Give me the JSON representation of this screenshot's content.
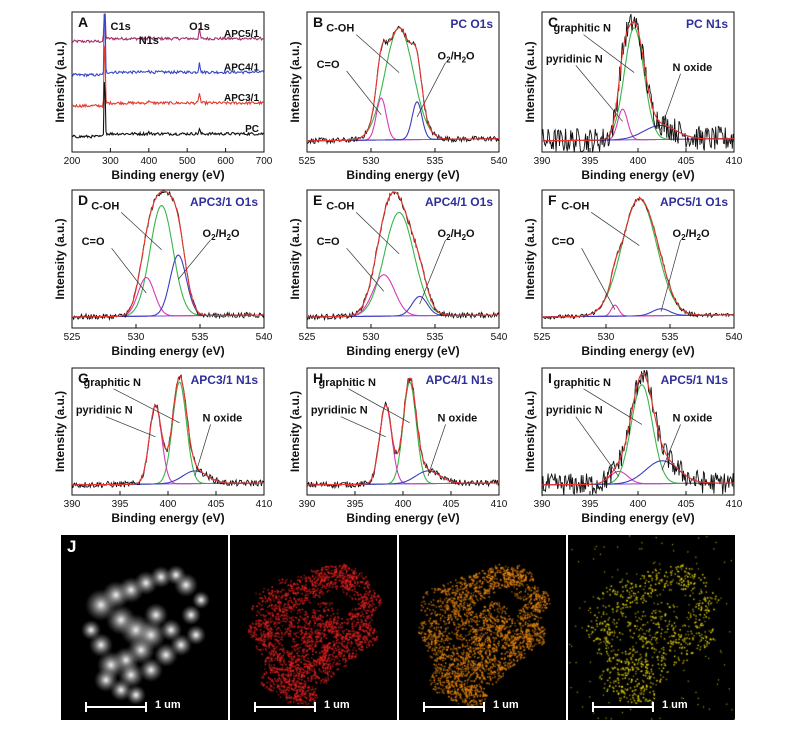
{
  "colors": {
    "black": "#111111",
    "red": "#e8382f",
    "green": "#39b54a",
    "blue": "#3a3ec2",
    "magenta": "#d83ab6",
    "purple": "#7b4fc9",
    "navy": "#2f2f9a",
    "survey_purple": "#a0306a",
    "survey_blue": "#3746c8",
    "survey_red": "#e03a31"
  },
  "chart_data": [
    {
      "id": "A",
      "type": "line",
      "panel_label": "A",
      "xlabel": "Binding energy (eV)",
      "ylabel": "Intensity (a.u.)",
      "xlim": [
        200,
        700
      ],
      "xticks": [
        200,
        300,
        400,
        500,
        600,
        700
      ],
      "peak_labels": [
        {
          "text": "C1s",
          "x": 285
        },
        {
          "text": "N1s",
          "x": 400
        },
        {
          "text": "O1s",
          "x": 532
        }
      ],
      "series": [
        {
          "name": "APC5/1",
          "color": "#a0306a"
        },
        {
          "name": "APC4/1",
          "color": "#3746c8"
        },
        {
          "name": "APC3/1",
          "color": "#e03a31"
        },
        {
          "name": "PC",
          "color": "#111111"
        }
      ],
      "peaks": [
        {
          "x": 285,
          "h": [
            1.0,
            0.85,
            0.75,
            0.7
          ]
        },
        {
          "x": 400,
          "h": [
            0.06,
            0.08,
            0.1,
            0.05
          ]
        },
        {
          "x": 532,
          "h": [
            0.3,
            0.35,
            0.35,
            0.15
          ]
        }
      ]
    },
    {
      "id": "B",
      "type": "line",
      "panel_label": "B",
      "title": "PC O1s",
      "xlabel": "Binding energy (eV)",
      "ylabel": "Intensity (a.u.)",
      "xlim": [
        525,
        540
      ],
      "xticks": [
        525,
        530,
        535,
        540
      ],
      "labels": [
        "C-OH",
        "C=O",
        "O2/H2O"
      ],
      "components": [
        {
          "name": "C-OH",
          "center": 532.2,
          "fwhm": 2.6,
          "amp": 0.8,
          "color": "#39b54a"
        },
        {
          "name": "C=O",
          "center": 530.8,
          "fwhm": 0.9,
          "amp": 0.3,
          "color": "#d83ab6"
        },
        {
          "name": "O2/H2O",
          "center": 533.6,
          "fwhm": 0.9,
          "amp": 0.27,
          "color": "#3a3ec2"
        }
      ],
      "noise": 0.02
    },
    {
      "id": "C",
      "type": "line",
      "panel_label": "C",
      "title": "PC N1s",
      "xlabel": "Binding energy (eV)",
      "ylabel": "Intensity (a.u.)",
      "xlim": [
        390,
        410
      ],
      "xticks": [
        390,
        395,
        400,
        405,
        410
      ],
      "labels": [
        "graphitic N",
        "pyridinic N",
        "N oxide"
      ],
      "components": [
        {
          "name": "graphitic N",
          "center": 399.6,
          "fwhm": 2.4,
          "amp": 0.8,
          "color": "#39b54a"
        },
        {
          "name": "pyridinic N",
          "center": 398.4,
          "fwhm": 1.2,
          "amp": 0.22,
          "color": "#d83ab6"
        },
        {
          "name": "N oxide",
          "center": 402.3,
          "fwhm": 4,
          "amp": 0.1,
          "color": "#3a3ec2"
        }
      ],
      "noise": 0.09
    },
    {
      "id": "D",
      "type": "line",
      "panel_label": "D",
      "title": "APC3/1 O1s",
      "xlabel": "Binding energy (eV)",
      "ylabel": "Intensity (a.u.)",
      "xlim": [
        525,
        540
      ],
      "xticks": [
        525,
        530,
        535,
        540
      ],
      "labels": [
        "C-OH",
        "C=O",
        "O2/H2O"
      ],
      "components": [
        {
          "name": "C-OH",
          "center": 532.0,
          "fwhm": 2.1,
          "amp": 0.8,
          "color": "#39b54a"
        },
        {
          "name": "C=O",
          "center": 530.8,
          "fwhm": 1.5,
          "amp": 0.28,
          "color": "#d83ab6"
        },
        {
          "name": "O2/H2O",
          "center": 533.3,
          "fwhm": 1.5,
          "amp": 0.44,
          "color": "#3a3ec2"
        }
      ],
      "noise": 0.02
    },
    {
      "id": "E",
      "type": "line",
      "panel_label": "E",
      "title": "APC4/1 O1s",
      "xlabel": "Binding energy (eV)",
      "ylabel": "Intensity (a.u.)",
      "xlim": [
        525,
        540
      ],
      "xticks": [
        525,
        530,
        535,
        540
      ],
      "labels": [
        "C-OH",
        "C=O",
        "O2/H2O"
      ],
      "components": [
        {
          "name": "C-OH",
          "center": 532.2,
          "fwhm": 2.7,
          "amp": 0.75,
          "color": "#39b54a"
        },
        {
          "name": "C=O",
          "center": 531.0,
          "fwhm": 2.0,
          "amp": 0.3,
          "color": "#d83ab6"
        },
        {
          "name": "O2/H2O",
          "center": 533.8,
          "fwhm": 1.4,
          "amp": 0.14,
          "color": "#3a3ec2"
        }
      ],
      "noise": 0.02
    },
    {
      "id": "F",
      "type": "line",
      "panel_label": "F",
      "title": "APC5/1 O1s",
      "xlabel": "Binding energy (eV)",
      "ylabel": "Intensity (a.u.)",
      "xlim": [
        525,
        540
      ],
      "xticks": [
        525,
        530,
        535,
        540
      ],
      "labels": [
        "C-OH",
        "C=O",
        "O2/H2O"
      ],
      "components": [
        {
          "name": "C-OH",
          "center": 532.6,
          "fwhm": 3.2,
          "amp": 0.85,
          "color": "#39b54a"
        },
        {
          "name": "C=O",
          "center": 530.7,
          "fwhm": 0.7,
          "amp": 0.08,
          "color": "#d83ab6"
        },
        {
          "name": "O2/H2O",
          "center": 534.3,
          "fwhm": 1.6,
          "amp": 0.05,
          "color": "#3a3ec2"
        }
      ],
      "noise": 0.015
    },
    {
      "id": "G",
      "type": "line",
      "panel_label": "G",
      "title": "APC3/1 N1s",
      "xlabel": "Binding energy (eV)",
      "ylabel": "Intensity (a.u.)",
      "xlim": [
        390,
        410
      ],
      "xticks": [
        390,
        395,
        400,
        405,
        410
      ],
      "labels": [
        "graphitic N",
        "pyridinic N",
        "N oxide"
      ],
      "components": [
        {
          "name": "graphitic N",
          "center": 401.2,
          "fwhm": 1.7,
          "amp": 0.8,
          "color": "#39b54a"
        },
        {
          "name": "pyridinic N",
          "center": 398.7,
          "fwhm": 1.5,
          "amp": 0.62,
          "color": "#d83ab6"
        },
        {
          "name": "N oxide",
          "center": 402.8,
          "fwhm": 3.0,
          "amp": 0.1,
          "color": "#3a3ec2"
        }
      ],
      "noise": 0.025
    },
    {
      "id": "H",
      "type": "line",
      "panel_label": "H",
      "title": "APC4/1 N1s",
      "xlabel": "Binding energy (eV)",
      "ylabel": "Intensity (a.u.)",
      "xlim": [
        390,
        410
      ],
      "xticks": [
        390,
        395,
        400,
        405,
        410
      ],
      "labels": [
        "graphitic N",
        "pyridinic N",
        "N oxide"
      ],
      "components": [
        {
          "name": "graphitic N",
          "center": 400.7,
          "fwhm": 1.6,
          "amp": 0.8,
          "color": "#39b54a"
        },
        {
          "name": "pyridinic N",
          "center": 398.2,
          "fwhm": 1.5,
          "amp": 0.62,
          "color": "#d83ab6"
        },
        {
          "name": "N oxide",
          "center": 402.6,
          "fwhm": 3.0,
          "amp": 0.1,
          "color": "#3a3ec2"
        }
      ],
      "noise": 0.025
    },
    {
      "id": "I",
      "type": "line",
      "panel_label": "I",
      "title": "APC5/1 N1s",
      "xlabel": "Binding energy (eV)",
      "ylabel": "Intensity (a.u.)",
      "xlim": [
        390,
        410
      ],
      "xticks": [
        390,
        395,
        400,
        405,
        410
      ],
      "labels": [
        "graphitic N",
        "pyridinic N",
        "N oxide"
      ],
      "components": [
        {
          "name": "graphitic N",
          "center": 400.4,
          "fwhm": 2.6,
          "amp": 0.78,
          "color": "#39b54a"
        },
        {
          "name": "pyridinic N",
          "center": 398.0,
          "fwhm": 2.2,
          "amp": 0.1,
          "color": "#d83ab6"
        },
        {
          "name": "N oxide",
          "center": 402.5,
          "fwhm": 4.0,
          "amp": 0.18,
          "color": "#3a3ec2"
        }
      ],
      "noise": 0.09
    }
  ],
  "edx_maps": {
    "panel_label": "J",
    "scale_label": "1 um",
    "panels": [
      {
        "name": "haadf",
        "color": "#e0e0e0"
      },
      {
        "name": "carbon-map",
        "color": "#ee2222"
      },
      {
        "name": "oxygen-map",
        "color": "#f08a10"
      },
      {
        "name": "nitrogen-map",
        "color": "#f0e010"
      }
    ]
  }
}
